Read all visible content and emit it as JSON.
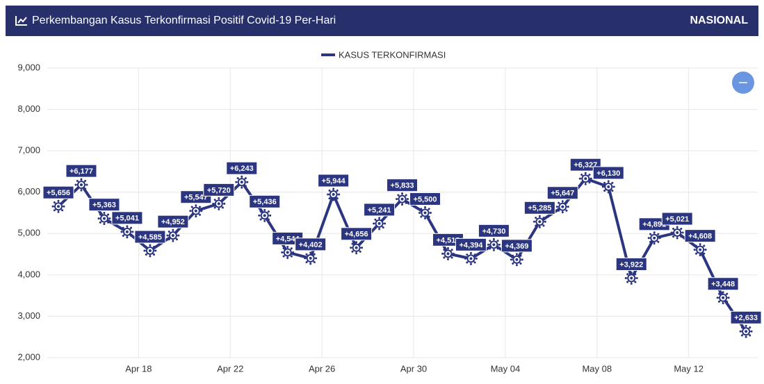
{
  "header": {
    "title": "Perkembangan Kasus Terkonfirmasi Positif Covid-19 Per-Hari",
    "badge": "NASIONAL"
  },
  "chart_data": {
    "type": "line",
    "categories": [
      null,
      null,
      null,
      null,
      "Apr 18",
      null,
      null,
      null,
      "Apr 22",
      null,
      null,
      null,
      "Apr 26",
      null,
      null,
      null,
      "Apr 30",
      null,
      null,
      null,
      "May 04",
      null,
      null,
      null,
      "May 08",
      null,
      null,
      null,
      "May 12",
      null,
      null
    ],
    "series": [
      {
        "name": "KASUS TERKONFIRMASI",
        "color": "#2b3580",
        "values": [
          5656,
          6177,
          5363,
          5041,
          4585,
          4952,
          5547,
          5720,
          6243,
          5436,
          4544,
          4402,
          5944,
          4656,
          5241,
          5833,
          5500,
          4512,
          4394,
          4730,
          4369,
          5285,
          5647,
          6327,
          6130,
          3922,
          4891,
          5021,
          4608,
          3448,
          2633
        ],
        "value_labels": [
          "+5,656",
          "+6,177",
          "+5,363",
          "+5,041",
          "+4,585",
          "+4,952",
          "+5,547",
          "+5,720",
          "+6,243",
          "+5,436",
          "+4,544",
          "+4,402",
          "+5,944",
          "+4,656",
          "+5,241",
          "+5,833",
          "+5,500",
          "+4,512",
          "+4,394",
          "+4,730",
          "+4,369",
          "+5,285",
          "+5,647",
          "+6,327",
          "+6,130",
          "+3,922",
          "+4,891",
          "+5,021",
          "+4,608",
          "+3,448",
          "+2,633"
        ]
      }
    ],
    "ylim": [
      2000,
      9000
    ],
    "yticks": [
      {
        "value": 2000,
        "label": "2,000"
      },
      {
        "value": 3000,
        "label": "3,000"
      },
      {
        "value": 4000,
        "label": "4,000"
      },
      {
        "value": 5000,
        "label": "5,000"
      },
      {
        "value": 6000,
        "label": "6,000"
      },
      {
        "value": 7000,
        "label": "7,000"
      },
      {
        "value": 8000,
        "label": "8,000"
      },
      {
        "value": 9000,
        "label": "9,000"
      }
    ],
    "grid": true,
    "legend": "top"
  }
}
